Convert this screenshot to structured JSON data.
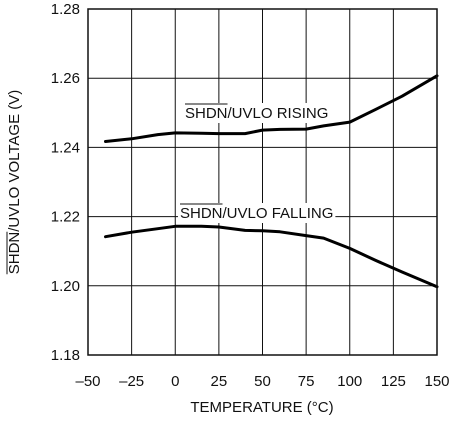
{
  "chart_data": {
    "type": "line",
    "title": "",
    "xlabel": "TEMPERATURE (°C)",
    "ylabel_overbar": "SHDN",
    "ylabel_rest": "/UVLO VOLTAGE (V)",
    "xlim": [
      -50,
      150
    ],
    "ylim": [
      1.18,
      1.28
    ],
    "x_ticks": [
      "–50",
      "–25",
      "0",
      "25",
      "50",
      "75",
      "100",
      "125",
      "150"
    ],
    "x_tick_values": [
      -50,
      -25,
      0,
      25,
      50,
      75,
      100,
      125,
      150
    ],
    "y_ticks": [
      "1.18",
      "1.20",
      "1.22",
      "1.24",
      "1.26",
      "1.28"
    ],
    "y_tick_values": [
      1.18,
      1.2,
      1.22,
      1.24,
      1.26,
      1.28
    ],
    "grid": true,
    "series": [
      {
        "name_overbar": "SHDN",
        "name_rest": "/UVLO RISING",
        "x": [
          -40,
          -25,
          -10,
          0,
          15,
          25,
          40,
          50,
          60,
          75,
          85,
          100,
          115,
          130,
          150
        ],
        "y": [
          1.2417,
          1.2425,
          1.2437,
          1.2442,
          1.2441,
          1.244,
          1.244,
          1.245,
          1.2452,
          1.2453,
          1.2462,
          1.2473,
          1.251,
          1.2548,
          1.2607
        ]
      },
      {
        "name_overbar": "SHDN",
        "name_rest": "/UVLO FALLING",
        "x": [
          -40,
          -25,
          -10,
          0,
          15,
          25,
          40,
          50,
          60,
          75,
          85,
          100,
          115,
          130,
          150
        ],
        "y": [
          1.2142,
          1.2155,
          1.2165,
          1.2172,
          1.2172,
          1.217,
          1.216,
          1.2159,
          1.2156,
          1.2145,
          1.2138,
          1.2108,
          1.2073,
          1.204,
          1.1997
        ]
      }
    ]
  }
}
